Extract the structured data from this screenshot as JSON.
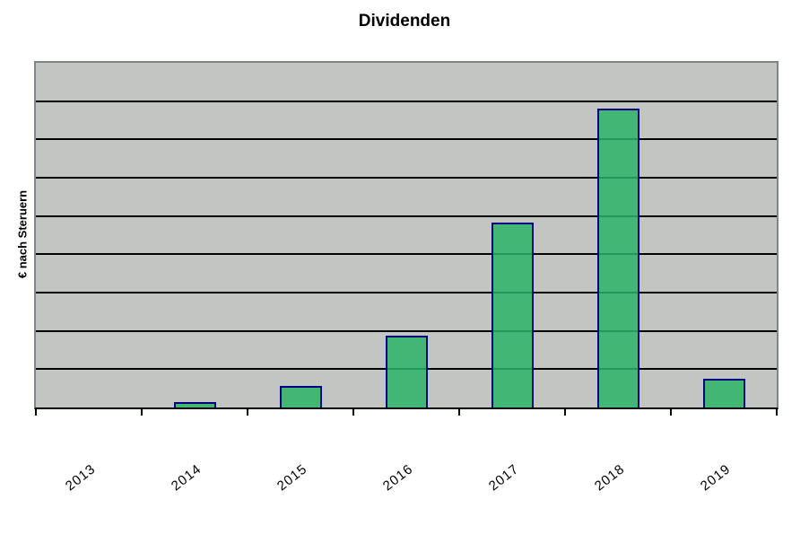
{
  "chart_data": {
    "type": "bar",
    "title": "Dividenden",
    "xlabel": "",
    "ylabel": "€ nach Steruern",
    "categories": [
      "2013",
      "2014",
      "2015",
      "2016",
      "2017",
      "2018",
      "2019"
    ],
    "values": [
      0,
      0.15,
      0.56,
      1.88,
      4.83,
      7.8,
      0.75
    ],
    "ylim": [
      0,
      9
    ],
    "gridline_interval": 1,
    "grid": true,
    "legend": false,
    "y_tick_labels_visible": false,
    "x_tick_label_rotation_deg": -38,
    "colors": {
      "bar_fill": "#41b575",
      "bar_border": "#000080",
      "plot_background": "#c3c5c3",
      "plot_border": "#828587",
      "gridline": "#000000",
      "axis_line": "#000000",
      "page_background": "#ffffff",
      "text": "#000000"
    }
  }
}
